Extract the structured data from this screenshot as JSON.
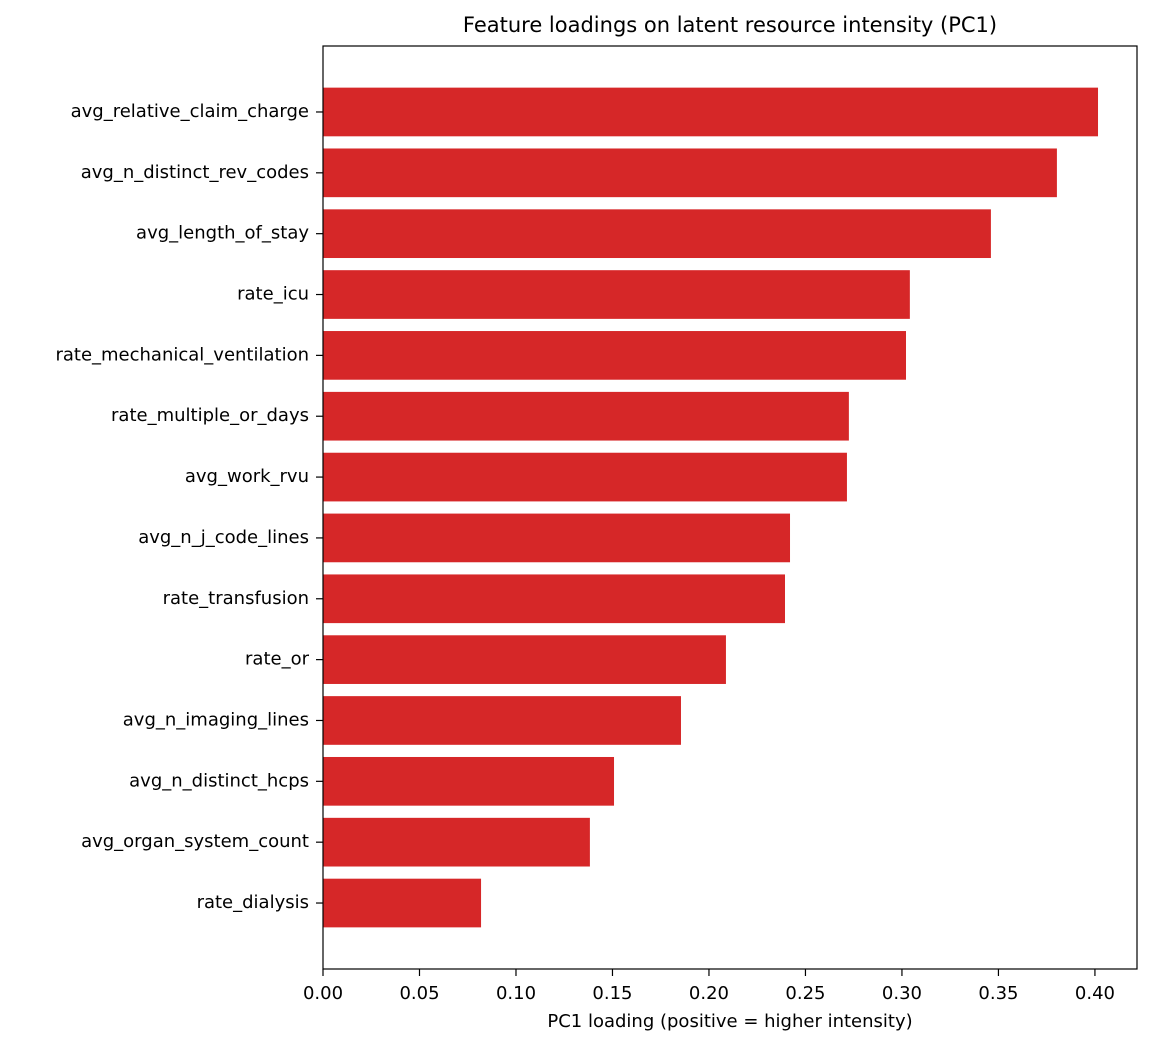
{
  "chart_data": {
    "type": "barh",
    "title": "Feature loadings on latent resource intensity (PC1)",
    "x_label": "PC1 loading (positive = higher intensity)",
    "categories": [
      "avg_relative_claim_charge",
      "avg_n_distinct_rev_codes",
      "avg_length_of_stay",
      "rate_icu",
      "rate_mechanical_ventilation",
      "rate_multiple_or_days",
      "avg_work_rvu",
      "avg_n_j_code_lines",
      "rate_transfusion",
      "rate_or",
      "avg_n_imaging_lines",
      "avg_n_distinct_hcps",
      "avg_organ_system_count",
      "rate_dialysis"
    ],
    "values": [
      0.4016,
      0.3803,
      0.3461,
      0.3041,
      0.3021,
      0.2725,
      0.2715,
      0.242,
      0.2394,
      0.2088,
      0.1855,
      0.1508,
      0.1383,
      0.0819
    ],
    "color": "#d62728",
    "xlim": [
      0,
      0.4218
    ],
    "xticks": [
      {
        "value": 0,
        "label": "0.00"
      },
      {
        "value": 0.05,
        "label": "0.05"
      },
      {
        "value": 0.1,
        "label": "0.10"
      },
      {
        "value": 0.15,
        "label": "0.15"
      },
      {
        "value": 0.2,
        "label": "0.20"
      },
      {
        "value": 0.25,
        "label": "0.25"
      },
      {
        "value": 0.3,
        "label": "0.30"
      },
      {
        "value": 0.35,
        "label": "0.35"
      },
      {
        "value": 0.4,
        "label": "0.40"
      }
    ],
    "grid": false
  }
}
